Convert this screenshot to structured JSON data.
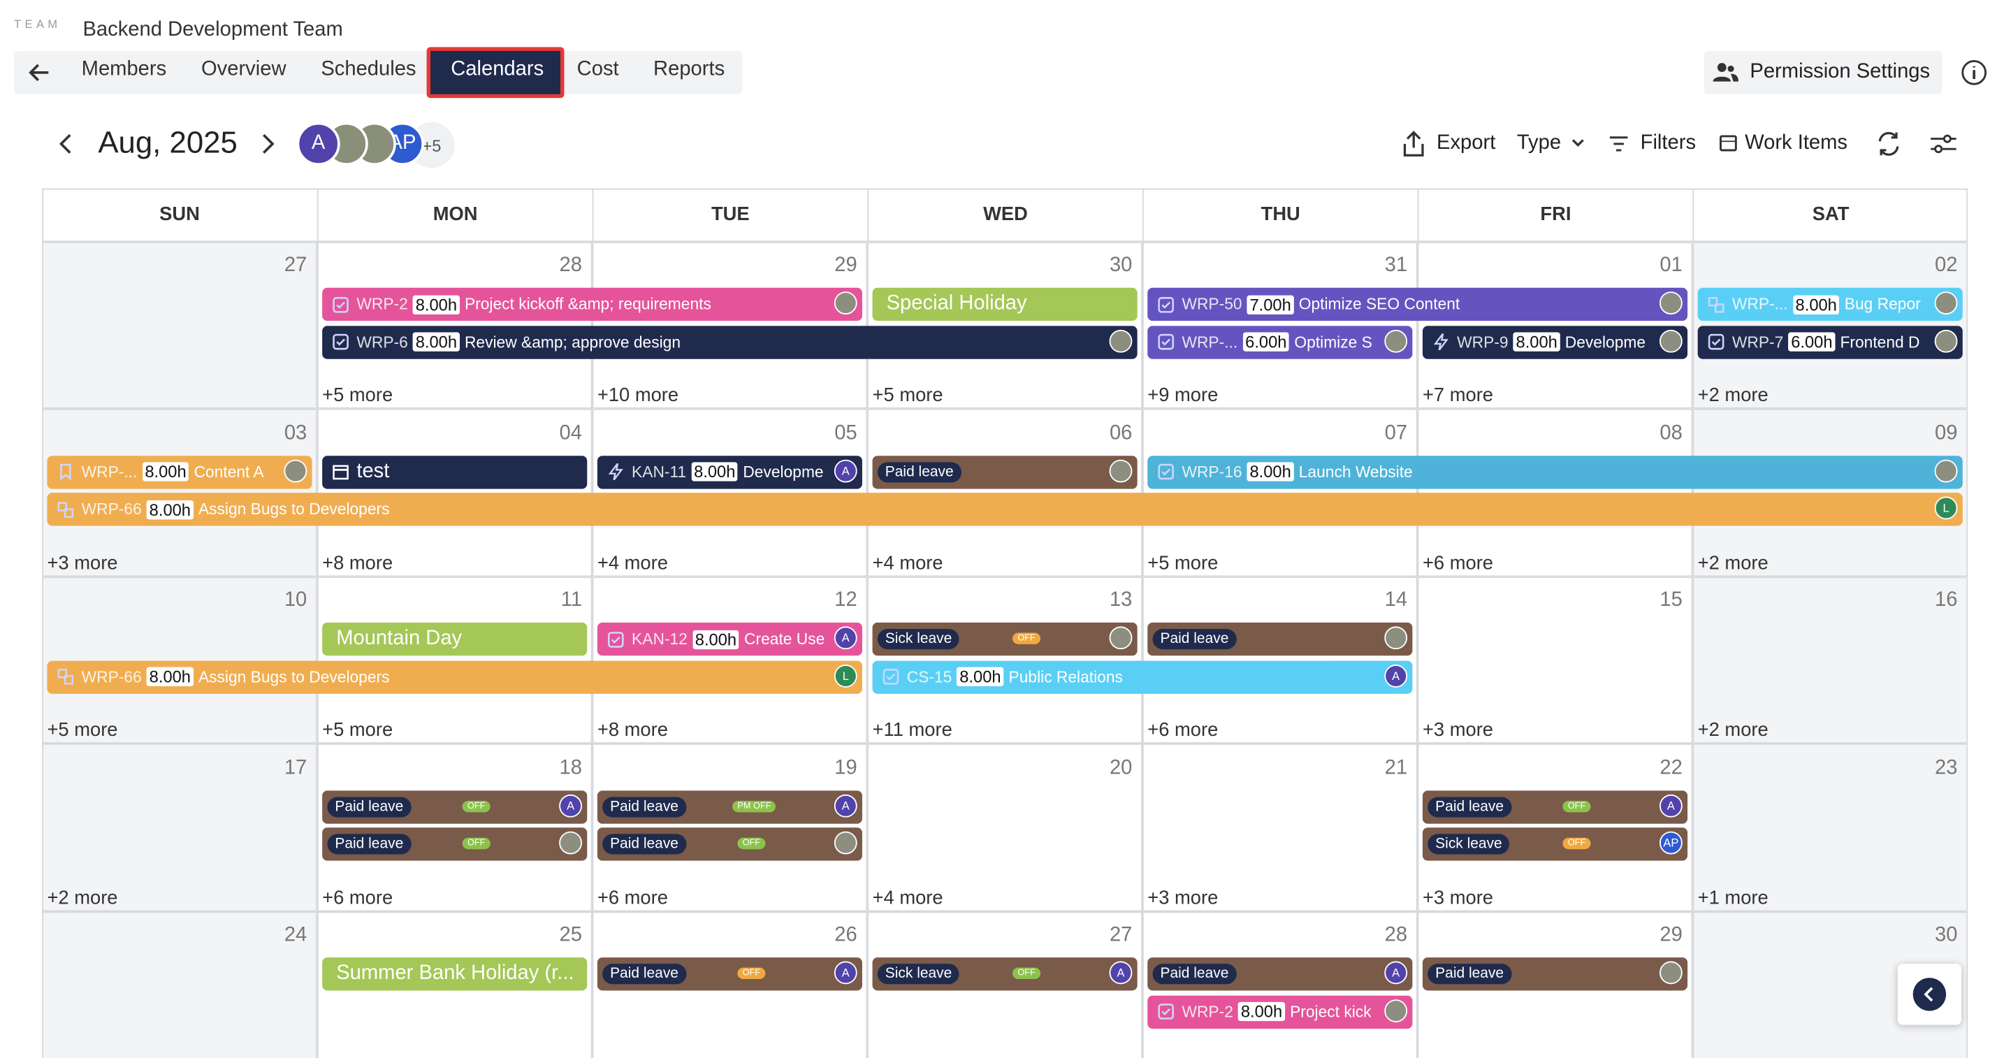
{
  "header": {
    "team_label": "TEAM",
    "team_name": "Backend Development Team"
  },
  "tabs": [
    "Members",
    "Overview",
    "Schedules",
    "Calendars",
    "Cost",
    "Reports"
  ],
  "active_tab": 3,
  "permission_button": "Permission Settings",
  "month": "Aug, 2025",
  "members": [
    {
      "label": "A",
      "color": "#5243aa"
    },
    {
      "photo": true
    },
    {
      "photo": true
    },
    {
      "label": "AP",
      "color": "#2f5bd0"
    }
  ],
  "more_members": "+5",
  "toolbar": {
    "export": "Export",
    "type": "Type",
    "filters": "Filters",
    "work_items": "Work Items"
  },
  "weekdays": [
    "SUN",
    "MON",
    "TUE",
    "WED",
    "THU",
    "FRI",
    "SAT"
  ],
  "weeks": [
    {
      "days": [
        {
          "date": "27"
        },
        {
          "date": "28",
          "more": "+5 more"
        },
        {
          "date": "29",
          "more": "+10 more"
        },
        {
          "date": "30",
          "more": "+5 more"
        },
        {
          "date": "31",
          "more": "+9 more"
        },
        {
          "date": "01",
          "more": "+7 more"
        },
        {
          "date": "02",
          "more": "+2 more"
        }
      ]
    },
    {
      "days": [
        {
          "date": "03",
          "more": "+3 more"
        },
        {
          "date": "04",
          "more": "+8 more"
        },
        {
          "date": "05",
          "more": "+4 more"
        },
        {
          "date": "06",
          "more": "+4 more"
        },
        {
          "date": "07",
          "more": "+5 more"
        },
        {
          "date": "08",
          "more": "+6 more"
        },
        {
          "date": "09",
          "more": "+2 more"
        }
      ]
    },
    {
      "days": [
        {
          "date": "10",
          "more": "+5 more"
        },
        {
          "date": "11",
          "more": "+5 more"
        },
        {
          "date": "12",
          "more": "+8 more"
        },
        {
          "date": "13",
          "more": "+11 more"
        },
        {
          "date": "14",
          "more": "+6 more"
        },
        {
          "date": "15",
          "more": "+3 more"
        },
        {
          "date": "16",
          "more": "+2 more"
        }
      ]
    },
    {
      "days": [
        {
          "date": "17",
          "more": "+2 more"
        },
        {
          "date": "18",
          "more": "+6 more"
        },
        {
          "date": "19",
          "more": "+6 more"
        },
        {
          "date": "20",
          "more": "+4 more"
        },
        {
          "date": "21",
          "more": "+3 more"
        },
        {
          "date": "22",
          "more": "+3 more"
        },
        {
          "date": "23",
          "more": "+1 more"
        }
      ]
    },
    {
      "days": [
        {
          "date": "24"
        },
        {
          "date": "25"
        },
        {
          "date": "26"
        },
        {
          "date": "27"
        },
        {
          "date": "28"
        },
        {
          "date": "29"
        },
        {
          "date": "30"
        }
      ]
    }
  ],
  "events": [
    {
      "week": 0,
      "start": 1,
      "span": 2,
      "kind": "task",
      "icon": "check",
      "key": "WRP-2",
      "hours": "8.00h",
      "title": "Project kickoff &amp; requirements",
      "color": "#e5549a",
      "photo": true
    },
    {
      "week": 0,
      "start": 1,
      "span": 3,
      "kind": "task",
      "icon": "check",
      "key": "WRP-6",
      "hours": "8.00h",
      "title": "Review &amp; approve design",
      "color": "#1f2a4d",
      "photo": true
    },
    {
      "week": 0,
      "start": 3,
      "span": 1,
      "kind": "holiday",
      "title": "Special Holiday",
      "color": "#a4c757"
    },
    {
      "week": 0,
      "start": 4,
      "span": 2,
      "kind": "task",
      "icon": "check",
      "key": "WRP-50",
      "hours": "7.00h",
      "title": "Optimize SEO Content",
      "color": "#6554c0",
      "photo": true
    },
    {
      "week": 0,
      "start": 4,
      "span": 1,
      "kind": "task",
      "icon": "check",
      "key": "WRP-...",
      "hours": "6.00h",
      "title": "Optimize S",
      "color": "#6554c0",
      "photo": true
    },
    {
      "week": 0,
      "start": 5,
      "span": 1,
      "kind": "task",
      "icon": "bolt",
      "key": "WRP-9",
      "hours": "8.00h",
      "title": "Developme",
      "color": "#1f2a4d",
      "photo": true
    },
    {
      "week": 0,
      "start": 6,
      "span": 1,
      "kind": "task",
      "icon": "link",
      "key": "WRP-...",
      "hours": "8.00h",
      "title": "Bug Repor",
      "color": "#5acff5",
      "photo": true
    },
    {
      "week": 0,
      "start": 6,
      "span": 1,
      "kind": "task",
      "icon": "check",
      "key": "WRP-7",
      "hours": "6.00h",
      "title": "Frontend D",
      "color": "#1f2a4d",
      "photo": true
    },
    {
      "week": 1,
      "start": 0,
      "span": 1,
      "kind": "task",
      "icon": "bookmark",
      "key": "WRP-...",
      "hours": "8.00h",
      "title": "Content A",
      "color": "#f0ad50",
      "photo": true
    },
    {
      "week": 1,
      "start": 1,
      "span": 1,
      "kind": "plain",
      "title": "test",
      "color": "#1f2a4d"
    },
    {
      "week": 1,
      "start": 2,
      "span": 1,
      "kind": "task",
      "icon": "bolt",
      "key": "KAN-11",
      "hours": "8.00h",
      "title": "Developme",
      "color": "#1f2a4d",
      "avatar": "A"
    },
    {
      "week": 1,
      "start": 3,
      "span": 1,
      "kind": "leave",
      "title": "Paid leave",
      "color": "#7a5a49",
      "photo": true
    },
    {
      "week": 1,
      "start": 4,
      "span": 3,
      "kind": "task",
      "icon": "check",
      "key": "WRP-16",
      "hours": "8.00h",
      "title": "Launch Website",
      "color": "#4fb3d9",
      "photo": true
    },
    {
      "week": 1,
      "start": 0,
      "span": 7,
      "kind": "task",
      "icon": "link",
      "key": "WRP-66",
      "hours": "8.00h",
      "title": "Assign Bugs to Developers",
      "color": "#f0ad50",
      "avatar": "L",
      "avatar_color": "#2e8b57"
    },
    {
      "week": 2,
      "start": 1,
      "span": 1,
      "kind": "holiday",
      "title": "Mountain Day",
      "color": "#a4c757"
    },
    {
      "week": 2,
      "start": 2,
      "span": 1,
      "kind": "task",
      "icon": "check",
      "key": "KAN-12",
      "hours": "8.00h",
      "title": "Create Use",
      "color": "#e5549a",
      "avatar": "A"
    },
    {
      "week": 2,
      "start": 3,
      "span": 1,
      "kind": "leave",
      "title": "Sick leave",
      "badge": "OFF",
      "badge_color": "#f0a940",
      "color": "#7a5a49",
      "photo": true
    },
    {
      "week": 2,
      "start": 4,
      "span": 1,
      "kind": "leave",
      "title": "Paid leave",
      "color": "#7a5a49",
      "photo": true
    },
    {
      "week": 2,
      "start": 0,
      "span": 3,
      "kind": "task",
      "icon": "link",
      "key": "WRP-66",
      "hours": "8.00h",
      "title": "Assign Bugs to Developers",
      "color": "#f0ad50",
      "avatar": "L",
      "avatar_color": "#2e8b57"
    },
    {
      "week": 2,
      "start": 3,
      "span": 2,
      "kind": "task",
      "icon": "check",
      "key": "CS-15",
      "hours": "8.00h",
      "title": "Public Relations",
      "color": "#5acff5",
      "avatar": "A"
    },
    {
      "week": 3,
      "start": 1,
      "span": 1,
      "kind": "leave",
      "title": "Paid leave",
      "badge": "OFF",
      "badge_color": "#8bc34a",
      "color": "#7a5a49",
      "avatar": "A"
    },
    {
      "week": 3,
      "start": 1,
      "span": 1,
      "kind": "leave",
      "title": "Paid leave",
      "badge": "OFF",
      "badge_color": "#8bc34a",
      "color": "#7a5a49",
      "photo": true
    },
    {
      "week": 3,
      "start": 2,
      "span": 1,
      "kind": "leave",
      "title": "Paid leave",
      "badge": "PM OFF",
      "badge_color": "#8bc34a",
      "color": "#7a5a49",
      "avatar": "A"
    },
    {
      "week": 3,
      "start": 2,
      "span": 1,
      "kind": "leave",
      "title": "Paid leave",
      "badge": "OFF",
      "badge_color": "#8bc34a",
      "color": "#7a5a49",
      "photo": true
    },
    {
      "week": 3,
      "start": 5,
      "span": 1,
      "kind": "leave",
      "title": "Paid leave",
      "badge": "OFF",
      "badge_color": "#8bc34a",
      "color": "#7a5a49",
      "avatar": "A"
    },
    {
      "week": 3,
      "start": 5,
      "span": 1,
      "kind": "leave",
      "title": "Sick leave",
      "badge": "OFF",
      "badge_color": "#f0a940",
      "color": "#7a5a49",
      "avatar": "AP",
      "avatar_color": "#2f5bd0"
    },
    {
      "week": 4,
      "start": 1,
      "span": 1,
      "kind": "holiday",
      "title": "Summer Bank Holiday (r...",
      "color": "#a4c757"
    },
    {
      "week": 4,
      "start": 2,
      "span": 1,
      "kind": "leave",
      "title": "Paid leave",
      "badge": "OFF",
      "badge_color": "#f0a940",
      "color": "#7a5a49",
      "avatar": "A"
    },
    {
      "week": 4,
      "start": 3,
      "span": 1,
      "kind": "leave",
      "title": "Sick leave",
      "badge": "OFF",
      "badge_color": "#8bc34a",
      "color": "#7a5a49",
      "avatar": "A"
    },
    {
      "week": 4,
      "start": 4,
      "span": 1,
      "kind": "leave",
      "title": "Paid leave",
      "color": "#7a5a49",
      "avatar": "A"
    },
    {
      "week": 4,
      "start": 4,
      "span": 1,
      "kind": "task",
      "icon": "check",
      "key": "WRP-2",
      "hours": "8.00h",
      "title": "Project kick",
      "color": "#e5549a",
      "photo": true
    },
    {
      "week": 4,
      "start": 5,
      "span": 1,
      "kind": "leave",
      "title": "Paid leave",
      "color": "#7a5a49",
      "photo": true
    }
  ]
}
